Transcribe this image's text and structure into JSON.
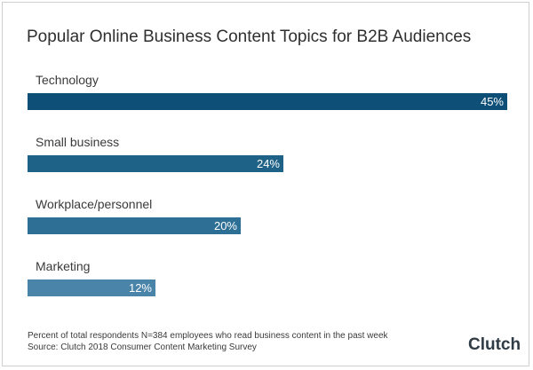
{
  "chart_data": {
    "type": "bar",
    "orientation": "horizontal",
    "title": "Popular Online Business Content Topics for B2B Audiences",
    "categories": [
      "Technology",
      "Small business",
      "Workplace/personnel",
      "Marketing"
    ],
    "values": [
      45,
      24,
      20,
      12
    ],
    "value_labels": [
      "45%",
      "24%",
      "20%",
      "12%"
    ],
    "bar_colors": [
      "#0d4f77",
      "#1e6288",
      "#2e7095",
      "#4a84a9"
    ],
    "xlim": [
      0,
      45
    ],
    "grid": false,
    "legend": "none"
  },
  "footnote": {
    "line1": "Percent of total respondents N=384 employees who read business content in the past week",
    "line2": "Source: Clutch 2018 Consumer Content Marketing Survey"
  },
  "logo": {
    "text": "Clutch",
    "dot_color": "#e8543c"
  }
}
